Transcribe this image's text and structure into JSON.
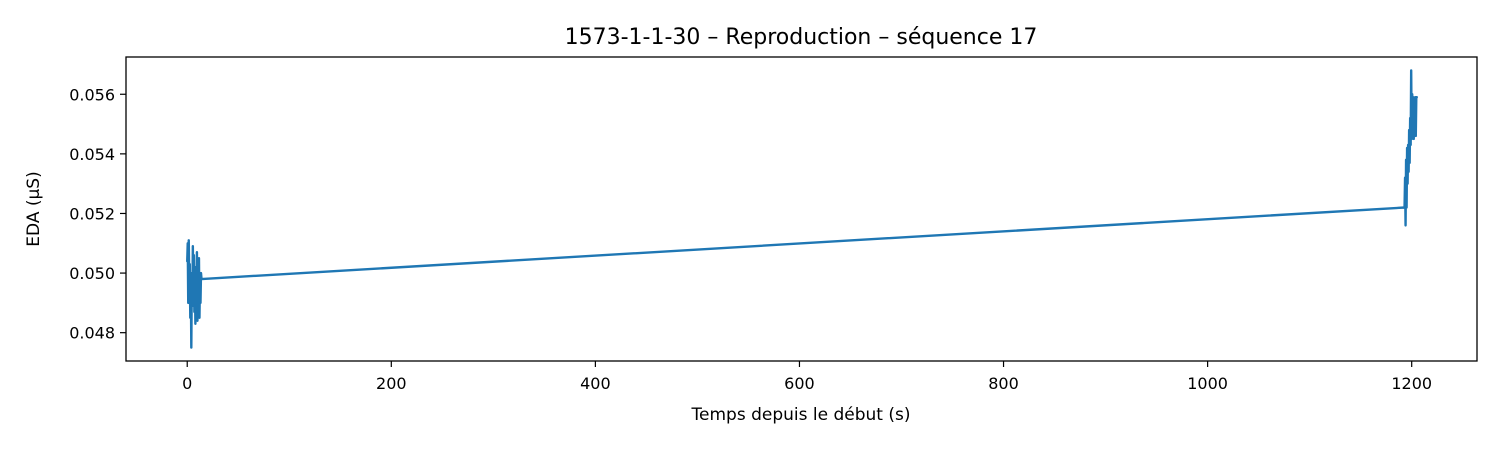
{
  "chart_data": {
    "type": "line",
    "title": "1573-1-1-30 – Reproduction – séquence 17",
    "xlabel": "Temps depuis le début (s)",
    "ylabel": "EDA (µS)",
    "xlim": [
      -60,
      1264
    ],
    "ylim": [
      0.04705,
      0.05725
    ],
    "xticks": [
      0,
      200,
      400,
      600,
      800,
      1000,
      1200
    ],
    "xtick_labels": [
      "0",
      "200",
      "400",
      "600",
      "800",
      "1000",
      "1200"
    ],
    "yticks": [
      0.048,
      0.05,
      0.052,
      0.054,
      0.056
    ],
    "ytick_labels": [
      "0.048",
      "0.050",
      "0.052",
      "0.054",
      "0.056"
    ],
    "grid": false,
    "series": [
      {
        "color": "#1f77b4",
        "x": [
          0.0,
          0.5,
          1.0,
          1.5,
          2.0,
          2.5,
          3.0,
          3.5,
          4.0,
          4.5,
          5.0,
          5.5,
          6.0,
          6.5,
          7.0,
          7.5,
          8.0,
          8.5,
          9.0,
          9.5,
          10.0,
          10.5,
          11.0,
          11.5,
          12.0,
          12.5,
          13.0,
          13.5,
          14.0,
          1193.0,
          1193.5,
          1194.0,
          1194.5,
          1195.0,
          1195.5,
          1196.0,
          1196.5,
          1197.0,
          1197.5,
          1198.0,
          1198.5,
          1199.0,
          1199.5,
          1200.0,
          1200.5,
          1201.0,
          1201.5,
          1202.0,
          1202.5,
          1203.0,
          1203.5,
          1204.0,
          1204.5,
          1205.0
        ],
        "y": [
          0.0504,
          0.051,
          0.049,
          0.0511,
          0.0496,
          0.0503,
          0.0485,
          0.05,
          0.0475,
          0.0498,
          0.0489,
          0.0509,
          0.0493,
          0.0506,
          0.0487,
          0.0502,
          0.0483,
          0.05,
          0.0491,
          0.0507,
          0.0484,
          0.0499,
          0.0492,
          0.0505,
          0.0485,
          0.0498,
          0.049,
          0.05,
          0.0498,
          0.0522,
          0.0532,
          0.0516,
          0.0538,
          0.0522,
          0.0542,
          0.053,
          0.0543,
          0.0534,
          0.0548,
          0.0537,
          0.0552,
          0.0543,
          0.0568,
          0.0545,
          0.056,
          0.0547,
          0.0559,
          0.0545,
          0.0556,
          0.0546,
          0.0559,
          0.0546,
          0.0559,
          0.0559
        ]
      }
    ]
  }
}
